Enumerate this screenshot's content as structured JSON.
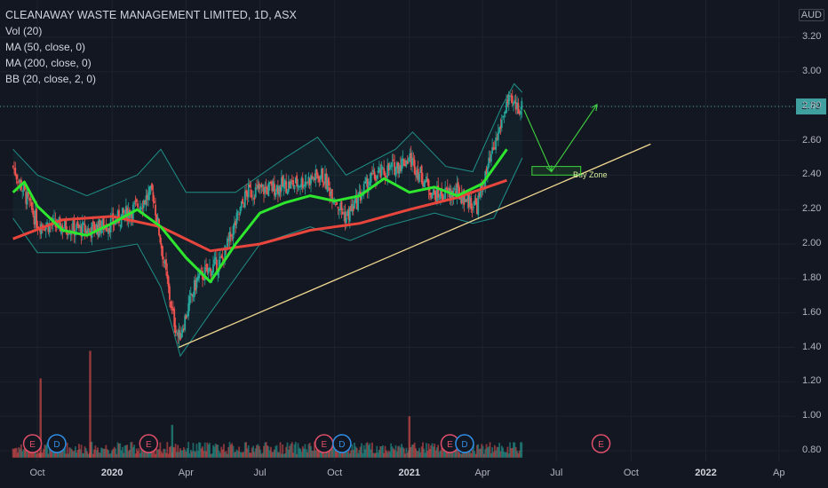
{
  "legend": {
    "title": "CLEANAWAY WASTE MANAGEMENT LIMITED, 1D, ASX",
    "vol": "Vol (20)",
    "ma50": "MA (50, close, 0)",
    "ma200": "MA (200, close, 0)",
    "bb": "BB (20, close, 2, 0)"
  },
  "currency": "AUD",
  "last_price_label": "2.79",
  "annotation": {
    "buy_zone_label": "Buy Zone"
  },
  "event_markers": [
    "E",
    "D",
    "E",
    "E",
    "D",
    "E",
    "D",
    "E"
  ],
  "colors": {
    "background": "#131722",
    "grid": "#1e222d",
    "candle_up": "#26a69a",
    "candle_down": "#ef5350",
    "ma50": "#2ee62e",
    "ma200": "#e8463c",
    "bollinger": "#1f8f86",
    "trendline": "#f0d890",
    "projection_arrows": "#3fd43f",
    "buy_zone": "#3fd43f"
  },
  "chart_data": {
    "type": "candlestick",
    "title": "CLEANAWAY WASTE MANAGEMENT LIMITED, 1D, ASX",
    "y_axis": {
      "ticks": [
        "3.20",
        "3.00",
        "2.80",
        "2.60",
        "2.40",
        "2.20",
        "2.00",
        "1.80",
        "1.60",
        "1.40",
        "1.20",
        "1.00",
        "0.80"
      ],
      "range": [
        0.74,
        3.4
      ],
      "unit": "AUD"
    },
    "x_axis": {
      "ticks": [
        "Oct",
        "2020",
        "Apr",
        "Jul",
        "Oct",
        "2021",
        "Apr",
        "Jul",
        "Oct",
        "2022",
        "Ap"
      ],
      "bold_ticks": [
        "2020",
        "2021",
        "2022"
      ]
    },
    "price_path": [
      [
        "2019-09-01",
        2.45
      ],
      [
        "2019-10-01",
        2.12
      ],
      [
        "2019-11-01",
        2.1
      ],
      [
        "2019-12-01",
        2.08
      ],
      [
        "2020-01-01",
        2.12
      ],
      [
        "2020-02-01",
        2.22
      ],
      [
        "2020-02-20",
        2.3
      ],
      [
        "2020-03-15",
        1.6
      ],
      [
        "2020-03-23",
        1.45
      ],
      [
        "2020-04-15",
        1.8
      ],
      [
        "2020-05-15",
        1.9
      ],
      [
        "2020-06-15",
        2.3
      ],
      [
        "2020-08-15",
        2.35
      ],
      [
        "2020-09-15",
        2.4
      ],
      [
        "2020-10-15",
        2.15
      ],
      [
        "2020-11-15",
        2.38
      ],
      [
        "2020-12-15",
        2.45
      ],
      [
        "2021-01-01",
        2.5
      ],
      [
        "2021-02-01",
        2.28
      ],
      [
        "2021-03-01",
        2.3
      ],
      [
        "2021-03-25",
        2.22
      ],
      [
        "2021-04-15",
        2.55
      ],
      [
        "2021-05-01",
        2.82
      ],
      [
        "2021-05-20",
        2.79
      ]
    ],
    "ma50": [
      [
        "2019-09-01",
        2.3
      ],
      [
        "2019-09-15",
        2.36
      ],
      [
        "2019-10-01",
        2.22
      ],
      [
        "2019-11-01",
        2.08
      ],
      [
        "2019-12-01",
        2.05
      ],
      [
        "2020-01-01",
        2.12
      ],
      [
        "2020-02-01",
        2.2
      ],
      [
        "2020-03-01",
        2.1
      ],
      [
        "2020-04-01",
        1.92
      ],
      [
        "2020-05-01",
        1.78
      ],
      [
        "2020-06-01",
        2.0
      ],
      [
        "2020-07-01",
        2.18
      ],
      [
        "2020-08-01",
        2.24
      ],
      [
        "2020-09-01",
        2.28
      ],
      [
        "2020-10-01",
        2.25
      ],
      [
        "2020-11-01",
        2.28
      ],
      [
        "2020-12-01",
        2.38
      ],
      [
        "2021-01-01",
        2.3
      ],
      [
        "2021-02-01",
        2.33
      ],
      [
        "2021-03-01",
        2.28
      ],
      [
        "2021-04-01",
        2.35
      ],
      [
        "2021-05-01",
        2.55
      ]
    ],
    "ma200": [
      [
        "2019-09-01",
        2.03
      ],
      [
        "2019-11-01",
        2.14
      ],
      [
        "2020-01-01",
        2.16
      ],
      [
        "2020-03-01",
        2.1
      ],
      [
        "2020-05-01",
        1.96
      ],
      [
        "2020-07-01",
        2.0
      ],
      [
        "2020-09-01",
        2.08
      ],
      [
        "2020-11-01",
        2.12
      ],
      [
        "2021-01-01",
        2.2
      ],
      [
        "2021-03-01",
        2.27
      ],
      [
        "2021-05-01",
        2.37
      ]
    ],
    "bollinger_upper": [
      [
        "2019-09-01",
        2.55
      ],
      [
        "2019-10-01",
        2.4
      ],
      [
        "2019-12-01",
        2.28
      ],
      [
        "2020-02-01",
        2.4
      ],
      [
        "2020-03-01",
        2.55
      ],
      [
        "2020-04-01",
        2.3
      ],
      [
        "2020-06-01",
        2.3
      ],
      [
        "2020-08-01",
        2.5
      ],
      [
        "2020-09-10",
        2.62
      ],
      [
        "2020-10-15",
        2.4
      ],
      [
        "2020-12-15",
        2.55
      ],
      [
        "2021-01-05",
        2.65
      ],
      [
        "2021-02-15",
        2.45
      ],
      [
        "2021-03-20",
        2.42
      ],
      [
        "2021-04-25",
        2.8
      ],
      [
        "2021-05-10",
        2.93
      ],
      [
        "2021-05-20",
        2.88
      ]
    ],
    "bollinger_lower": [
      [
        "2019-09-01",
        2.15
      ],
      [
        "2019-10-01",
        1.95
      ],
      [
        "2019-12-01",
        1.95
      ],
      [
        "2020-02-01",
        2.0
      ],
      [
        "2020-03-01",
        1.75
      ],
      [
        "2020-03-25",
        1.35
      ],
      [
        "2020-05-01",
        1.6
      ],
      [
        "2020-07-01",
        2.0
      ],
      [
        "2020-09-01",
        2.1
      ],
      [
        "2020-10-20",
        2.02
      ],
      [
        "2020-12-01",
        2.1
      ],
      [
        "2021-02-01",
        2.18
      ],
      [
        "2021-03-20",
        2.12
      ],
      [
        "2021-04-15",
        2.15
      ],
      [
        "2021-05-20",
        2.5
      ]
    ],
    "annotations": {
      "trendline": [
        [
          "2020-03-23",
          1.4
        ],
        [
          "2021-10-25",
          2.58
        ]
      ],
      "buy_zone": {
        "x": [
          "2021-06-01",
          "2021-07-31"
        ],
        "y": [
          2.4,
          2.45
        ],
        "label": "Buy Zone"
      },
      "projection_path": [
        [
          "2021-05-22",
          2.78
        ],
        [
          "2021-06-25",
          2.42
        ],
        [
          "2021-08-20",
          2.81
        ]
      ]
    },
    "volume_peaks": [
      [
        "2019-10-05",
        1.22
      ],
      [
        "2019-12-05",
        1.38
      ],
      [
        "2020-03-15",
        0.95
      ],
      [
        "2021-01-01",
        1.0
      ]
    ],
    "volume_bottom": 0.76
  }
}
